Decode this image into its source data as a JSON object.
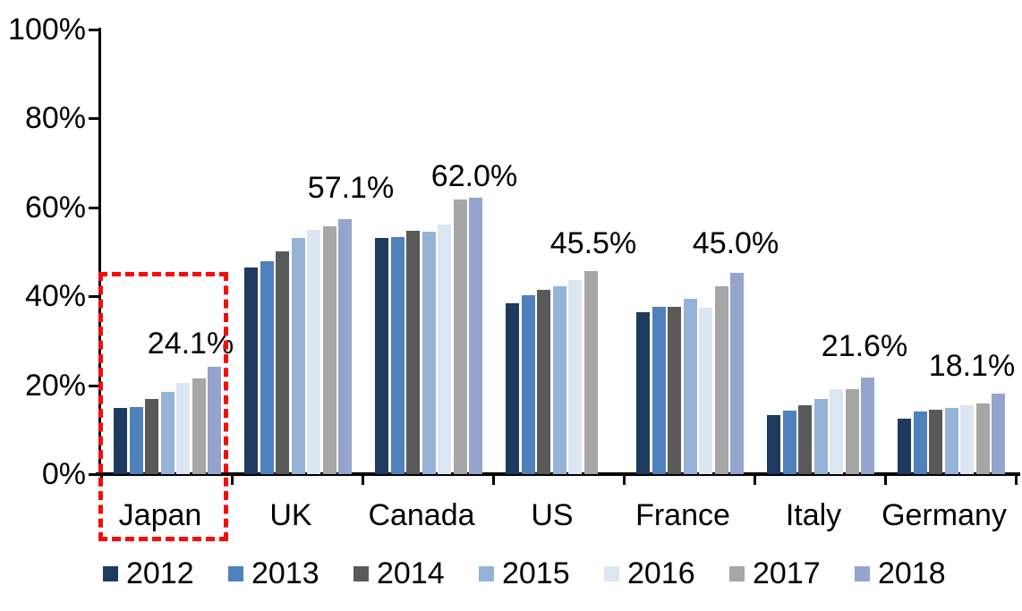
{
  "chart_data": {
    "type": "bar",
    "title": "",
    "categories": [
      "Japan",
      "UK",
      "Canada",
      "US",
      "France",
      "Italy",
      "Germany"
    ],
    "series": [
      {
        "name": "2012",
        "color": "#1F3A5F",
        "values": [
          14.9,
          46.3,
          52.9,
          38.2,
          36.3,
          13.2,
          12.5
        ]
      },
      {
        "name": "2013",
        "color": "#4F81BD",
        "values": [
          15.1,
          47.7,
          53.2,
          40.0,
          37.5,
          14.2,
          14.0
        ]
      },
      {
        "name": "2014",
        "color": "#595959",
        "values": [
          16.8,
          49.8,
          54.6,
          41.2,
          37.5,
          15.4,
          14.4
        ]
      },
      {
        "name": "2015",
        "color": "#95B3D7",
        "values": [
          18.4,
          53.0,
          54.4,
          42.0,
          39.2,
          16.8,
          14.8
        ]
      },
      {
        "name": "2016",
        "color": "#DCE6F2",
        "values": [
          20.4,
          54.7,
          56.0,
          43.5,
          37.2,
          19.0,
          15.5
        ]
      },
      {
        "name": "2017",
        "color": "#A6A6A6",
        "values": [
          21.5,
          55.6,
          61.6,
          45.5,
          42.1,
          19.1,
          15.9
        ]
      },
      {
        "name": "2018",
        "color": "#95A4CD",
        "values": [
          24.1,
          57.1,
          62.0,
          null,
          45.0,
          21.6,
          18.1
        ]
      }
    ],
    "data_labels": [
      {
        "category": "Japan",
        "text": "24.1%",
        "value": 24.1
      },
      {
        "category": "UK",
        "text": "57.1%",
        "value": 57.1
      },
      {
        "category": "Canada",
        "text": "62.0%",
        "value": 62.0
      },
      {
        "category": "US",
        "text": "45.5%",
        "value": 45.5
      },
      {
        "category": "France",
        "text": "45.0%",
        "value": 45.0
      },
      {
        "category": "Italy",
        "text": "21.6%",
        "value": 21.6
      },
      {
        "category": "Germany",
        "text": "18.1%",
        "value": 18.1
      }
    ],
    "y_axis": {
      "ticks": [
        "100%",
        "80%",
        "60%",
        "40%",
        "20%",
        "0%"
      ],
      "min": 0,
      "max": 100,
      "grid": false,
      "axis_color": "#000000"
    },
    "legend": {
      "position": "bottom",
      "entries": [
        "2012",
        "2013",
        "2014",
        "2015",
        "2016",
        "2017",
        "2018"
      ]
    },
    "highlight": {
      "target": "Japan",
      "shape": "dashed-rectangle",
      "color": "#F50D0D"
    }
  }
}
